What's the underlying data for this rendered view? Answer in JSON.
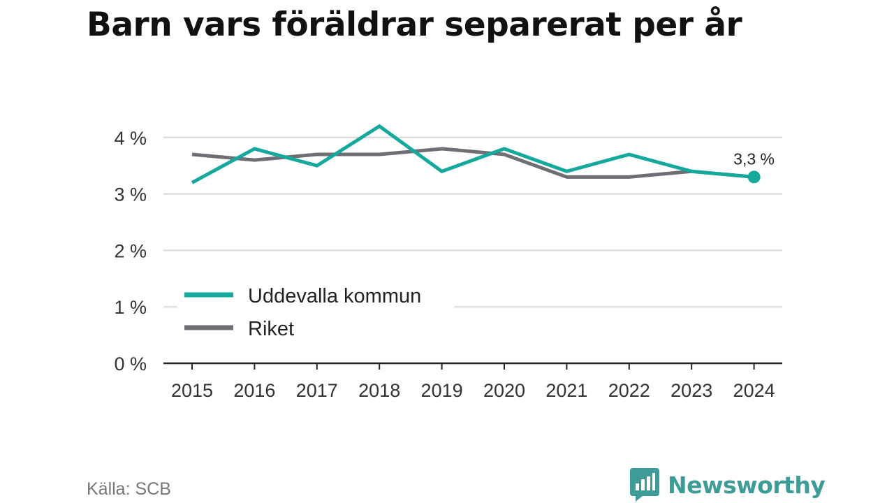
{
  "title": "Barn vars föräldrar separerat per år",
  "source": "Källa: SCB",
  "brand": {
    "name": "Newsworthy",
    "logo_icon": "bar-chart-speech-bubble-icon",
    "color": "#3e9c98"
  },
  "colors": {
    "uddevalla": "#15a99d",
    "riket": "#6f6e74",
    "grid": "#d9d9d9",
    "axis": "#222222"
  },
  "chart_data": {
    "type": "line",
    "title": "Barn vars föräldrar separerat per år",
    "x": [
      "2015",
      "2016",
      "2017",
      "2018",
      "2019",
      "2020",
      "2021",
      "2022",
      "2023",
      "2024"
    ],
    "series": [
      {
        "name": "Uddevalla kommun",
        "values": [
          3.2,
          3.8,
          3.5,
          4.2,
          3.4,
          3.8,
          3.4,
          3.7,
          3.4,
          3.3
        ]
      },
      {
        "name": "Riket",
        "values": [
          3.7,
          3.6,
          3.7,
          3.7,
          3.8,
          3.7,
          3.3,
          3.3,
          3.4,
          3.3
        ]
      }
    ],
    "y_ticks": [
      "0 %",
      "1 %",
      "2 %",
      "3 %",
      "4 %"
    ],
    "ylim": [
      0,
      4.5
    ],
    "grid": true,
    "legend": "bottom-left",
    "end_label": "3,3 %"
  }
}
